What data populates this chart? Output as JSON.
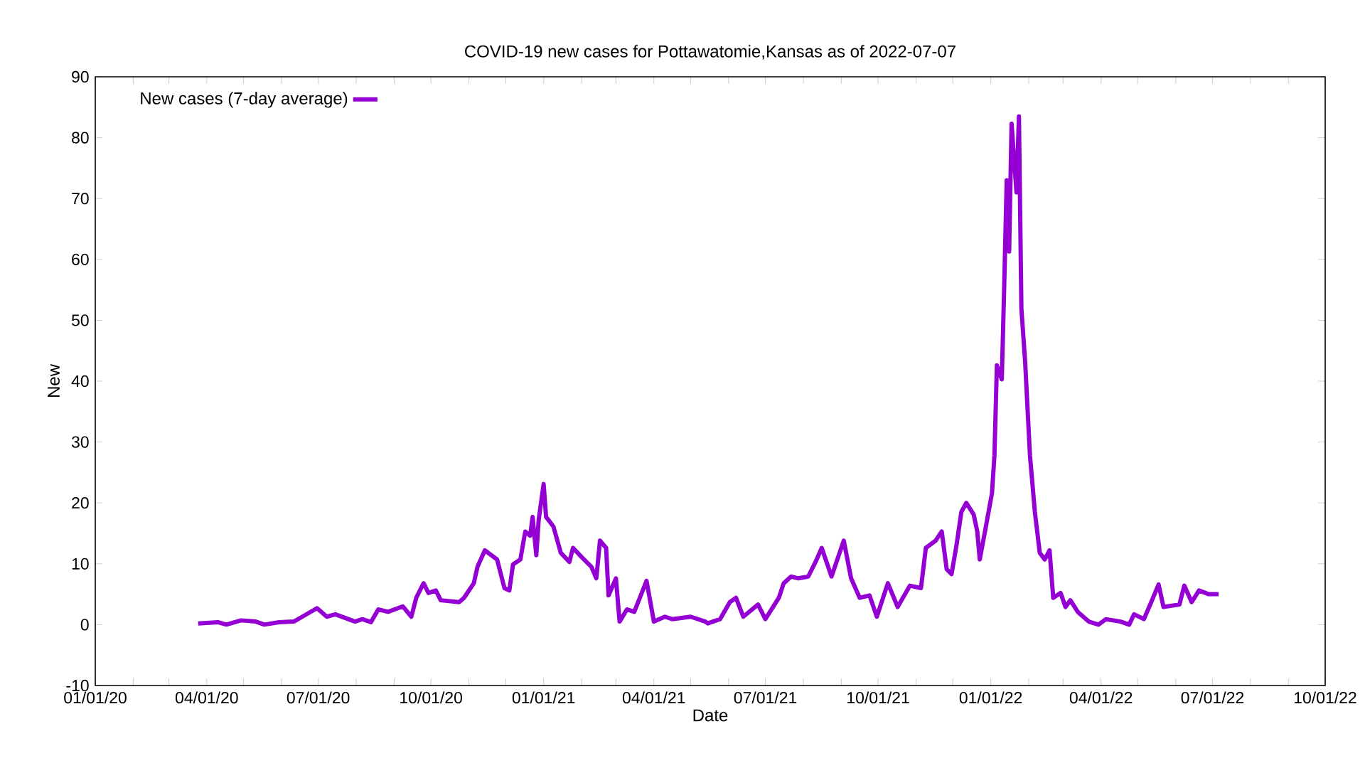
{
  "chart_data": {
    "type": "line",
    "title": "COVID-19 new cases for Pottawatomie,Kansas as of 2022-07-07",
    "xlabel": "Date",
    "ylabel": "New",
    "legend": "top left",
    "line_style": "solid",
    "xlim": [
      "2020-01-01",
      "2022-10-01"
    ],
    "ylim": [
      -10,
      90
    ],
    "yticks": [
      -10,
      0,
      10,
      20,
      30,
      40,
      50,
      60,
      70,
      80,
      90
    ],
    "xticks": [
      {
        "value": "2020-01-01",
        "label": "01/01/20"
      },
      {
        "value": "2020-02-01",
        "label": null
      },
      {
        "value": "2020-03-01",
        "label": null
      },
      {
        "value": "2020-04-01",
        "label": "04/01/20"
      },
      {
        "value": "2020-05-01",
        "label": null
      },
      {
        "value": "2020-06-01",
        "label": null
      },
      {
        "value": "2020-07-01",
        "label": "07/01/20"
      },
      {
        "value": "2020-08-01",
        "label": null
      },
      {
        "value": "2020-09-01",
        "label": null
      },
      {
        "value": "2020-10-01",
        "label": "10/01/20"
      },
      {
        "value": "2020-11-01",
        "label": null
      },
      {
        "value": "2020-12-01",
        "label": null
      },
      {
        "value": "2021-01-01",
        "label": "01/01/21"
      },
      {
        "value": "2021-02-01",
        "label": null
      },
      {
        "value": "2021-03-01",
        "label": null
      },
      {
        "value": "2021-04-01",
        "label": "04/01/21"
      },
      {
        "value": "2021-05-01",
        "label": null
      },
      {
        "value": "2021-06-01",
        "label": null
      },
      {
        "value": "2021-07-01",
        "label": "07/01/21"
      },
      {
        "value": "2021-08-01",
        "label": null
      },
      {
        "value": "2021-09-01",
        "label": null
      },
      {
        "value": "2021-10-01",
        "label": "10/01/21"
      },
      {
        "value": "2021-11-01",
        "label": null
      },
      {
        "value": "2021-12-01",
        "label": null
      },
      {
        "value": "2022-01-01",
        "label": "01/01/22"
      },
      {
        "value": "2022-02-01",
        "label": null
      },
      {
        "value": "2022-03-01",
        "label": null
      },
      {
        "value": "2022-04-01",
        "label": "04/01/22"
      },
      {
        "value": "2022-05-01",
        "label": null
      },
      {
        "value": "2022-06-01",
        "label": null
      },
      {
        "value": "2022-07-01",
        "label": "07/01/22"
      },
      {
        "value": "2022-08-01",
        "label": null
      },
      {
        "value": "2022-09-01",
        "label": null
      },
      {
        "value": "2022-10-01",
        "label": "10/01/22"
      }
    ],
    "series": [
      {
        "name": "New cases (7-day average)",
        "color": "#9400d3",
        "x": [
          "2020-03-25",
          "2020-04-10",
          "2020-04-17",
          "2020-04-29",
          "2020-05-11",
          "2020-05-18",
          "2020-05-30",
          "2020-06-11",
          "2020-06-18",
          "2020-06-30",
          "2020-07-08",
          "2020-07-15",
          "2020-07-31",
          "2020-08-06",
          "2020-08-13",
          "2020-08-19",
          "2020-08-27",
          "2020-09-08",
          "2020-09-15",
          "2020-09-19",
          "2020-09-25",
          "2020-09-29",
          "2020-10-05",
          "2020-10-09",
          "2020-10-24",
          "2020-10-28",
          "2020-11-05",
          "2020-11-08",
          "2020-11-14",
          "2020-11-24",
          "2020-11-30",
          "2020-12-04",
          "2020-12-07",
          "2020-12-13",
          "2020-12-17",
          "2020-12-21",
          "2020-12-23",
          "2020-12-26",
          "2020-12-28",
          "2021-01-01",
          "2021-01-03",
          "2021-01-09",
          "2021-01-15",
          "2021-01-22",
          "2021-01-25",
          "2021-02-01",
          "2021-02-09",
          "2021-02-13",
          "2021-02-16",
          "2021-02-21",
          "2021-02-23",
          "2021-03-01",
          "2021-03-04",
          "2021-03-10",
          "2021-03-16",
          "2021-03-26",
          "2021-04-01",
          "2021-04-10",
          "2021-04-16",
          "2021-05-01",
          "2021-05-13",
          "2021-05-15",
          "2021-05-25",
          "2021-06-02",
          "2021-06-07",
          "2021-06-13",
          "2021-06-25",
          "2021-07-01",
          "2021-07-12",
          "2021-07-16",
          "2021-07-22",
          "2021-07-28",
          "2021-08-05",
          "2021-08-11",
          "2021-08-16",
          "2021-08-24",
          "2021-09-03",
          "2021-09-09",
          "2021-09-16",
          "2021-09-24",
          "2021-09-30",
          "2021-10-09",
          "2021-10-17",
          "2021-10-27",
          "2021-11-05",
          "2021-11-09",
          "2021-11-17",
          "2021-11-22",
          "2021-11-26",
          "2021-11-30",
          "2021-12-04",
          "2021-12-08",
          "2021-12-12",
          "2021-12-18",
          "2021-12-21",
          "2021-12-23",
          "2021-12-27",
          "2022-01-02",
          "2022-01-04",
          "2022-01-06",
          "2022-01-10",
          "2022-01-12",
          "2022-01-14",
          "2022-01-16",
          "2022-01-18",
          "2022-01-22",
          "2022-01-24",
          "2022-01-26",
          "2022-01-29",
          "2022-02-02",
          "2022-02-06",
          "2022-02-10",
          "2022-02-14",
          "2022-02-18",
          "2022-02-21",
          "2022-02-27",
          "2022-03-03",
          "2022-03-07",
          "2022-03-13",
          "2022-03-22",
          "2022-03-30",
          "2022-04-05",
          "2022-04-17",
          "2022-04-24",
          "2022-04-28",
          "2022-05-06",
          "2022-05-12",
          "2022-05-18",
          "2022-05-22",
          "2022-06-04",
          "2022-06-08",
          "2022-06-14",
          "2022-06-20",
          "2022-06-28",
          "2022-07-06"
        ],
        "values": [
          0.2,
          0.4,
          0,
          0.7,
          0.5,
          0,
          0.4,
          0.5,
          1.3,
          2.7,
          1.3,
          1.7,
          0.5,
          0.9,
          0.4,
          2.5,
          2.1,
          3.0,
          1.3,
          4.4,
          6.8,
          5.2,
          5.6,
          4.0,
          3.7,
          4.4,
          6.8,
          9.5,
          12.2,
          10.7,
          6.0,
          5.6,
          9.9,
          10.7,
          15.3,
          14.6,
          17.7,
          11.4,
          17.3,
          23.1,
          17.7,
          16.1,
          11.8,
          10.3,
          12.6,
          11.1,
          9.5,
          7.6,
          13.8,
          12.6,
          4.8,
          7.6,
          0.5,
          2.5,
          2.1,
          7.2,
          0.5,
          1.3,
          0.9,
          1.3,
          0.5,
          0.2,
          0.9,
          3.7,
          4.4,
          1.3,
          3.3,
          0.9,
          4.4,
          6.8,
          7.9,
          7.6,
          7.9,
          10.3,
          12.6,
          7.9,
          13.8,
          7.6,
          4.4,
          4.8,
          1.3,
          6.8,
          2.9,
          6.4,
          6.0,
          12.6,
          13.8,
          15.3,
          9.1,
          8.3,
          13.0,
          18.5,
          20.0,
          18.1,
          15.3,
          10.7,
          15.0,
          21.6,
          27.8,
          42.6,
          40.3,
          55.8,
          73.0,
          61.3,
          82.3,
          71.0,
          83.5,
          51.9,
          43.4,
          27.8,
          18.5,
          11.8,
          10.7,
          12.2,
          4.4,
          5.2,
          2.9,
          4.0,
          2.1,
          0.5,
          0,
          0.9,
          0.5,
          0,
          1.7,
          0.9,
          3.7,
          6.6,
          2.9,
          3.3,
          6.4,
          3.7,
          5.6,
          5.0,
          5.0
        ]
      }
    ]
  }
}
